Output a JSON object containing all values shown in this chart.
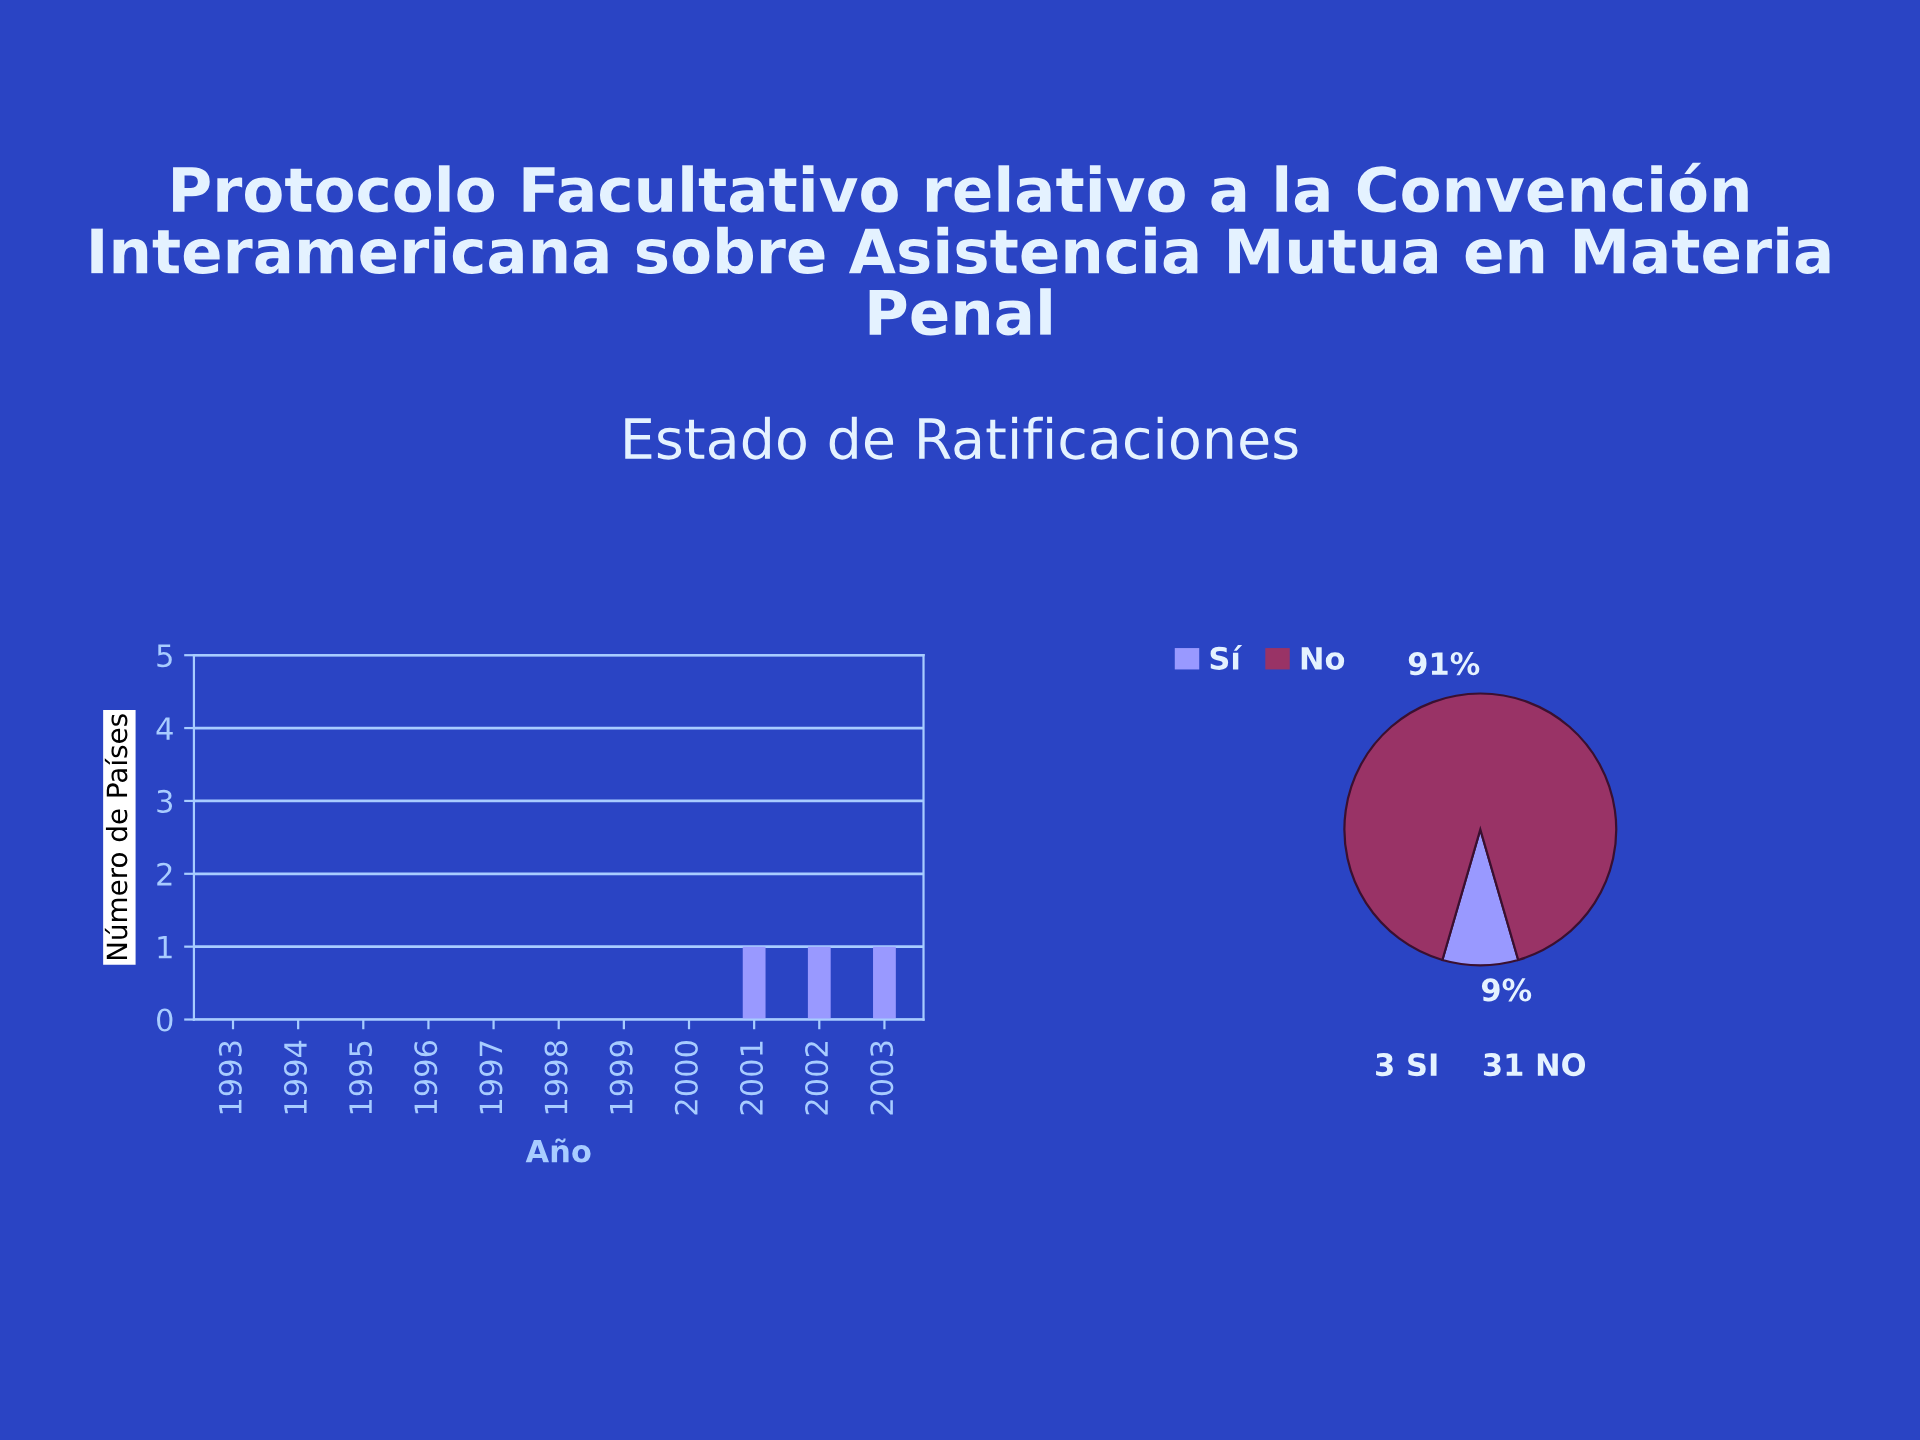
{
  "chart_data": [
    {
      "type": "bar",
      "title": "Protocolo Facultativo relativo a la Convención Interamericana sobre Asistencia Mutua en Materia Penal",
      "subtitle": "Estado de Ratificaciones",
      "categories": [
        "1993",
        "1994",
        "1995",
        "1996",
        "1997",
        "1998",
        "1999",
        "2000",
        "2001",
        "2002",
        "2003"
      ],
      "values": [
        0,
        0,
        0,
        0,
        0,
        0,
        0,
        0,
        1,
        1,
        1
      ],
      "color": "#9999ff",
      "xlabel": "Año",
      "ylabel": "Número de Países",
      "ylim": [
        0,
        5
      ],
      "yticks": [
        0,
        1,
        2,
        3,
        4,
        5
      ],
      "grid": "y"
    },
    {
      "type": "pie",
      "categories": [
        "Sí",
        "No"
      ],
      "values": [
        9,
        91
      ],
      "colors": [
        "#9999ff",
        "#993366"
      ],
      "value_labels": [
        "9%",
        "91%"
      ],
      "legend": "top left",
      "annotations": [
        "3 SI    31 NO"
      ]
    }
  ]
}
